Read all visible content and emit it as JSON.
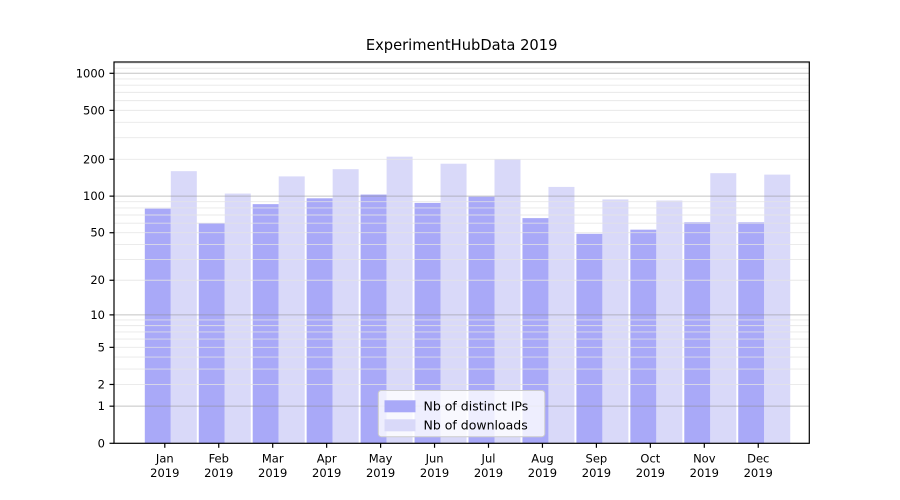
{
  "chart_data": {
    "type": "bar",
    "title": "ExperimentHubData 2019",
    "categories": [
      "Jan 2019",
      "Feb 2019",
      "Mar 2019",
      "Apr 2019",
      "May 2019",
      "Jun 2019",
      "Jul 2019",
      "Aug 2019",
      "Sep 2019",
      "Oct 2019",
      "Nov 2019",
      "Dec 2019"
    ],
    "x_tick_line1": [
      "Jan",
      "Feb",
      "Mar",
      "Apr",
      "May",
      "Jun",
      "Jul",
      "Aug",
      "Sep",
      "Oct",
      "Nov",
      "Dec"
    ],
    "x_tick_line2": "2019",
    "series": [
      {
        "name": "Nb of distinct IPs",
        "key": "distinct-ips",
        "color": "#a9a9f8",
        "values": [
          79,
          60,
          86,
          96,
          103,
          88,
          99,
          66,
          49,
          53,
          61,
          61
        ]
      },
      {
        "name": "Nb of downloads",
        "key": "downloads",
        "color": "#d9d9f9",
        "values": [
          160,
          105,
          145,
          166,
          210,
          184,
          200,
          119,
          94,
          92,
          154,
          150
        ]
      }
    ],
    "yscale": "log1p",
    "yticks": [
      0,
      1,
      2,
      5,
      10,
      20,
      50,
      100,
      200,
      500,
      1000
    ],
    "ylim": [
      0,
      1236
    ],
    "xlabel": "",
    "ylabel": "",
    "grid": true,
    "grid_position": "above-bars",
    "legend": {
      "position": "lower center"
    },
    "colors": {
      "background": "#ffffff",
      "axis": "#000000",
      "grid_minor": "#e4e4e4",
      "grid_major": "#8a8a8a",
      "legend_border": "#cccccc",
      "legend_background": "#ffffff"
    }
  }
}
